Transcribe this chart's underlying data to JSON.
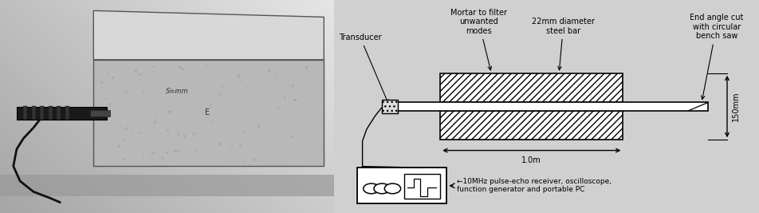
{
  "labels": {
    "transducer": "Transducer",
    "mortar": "Mortar to filter\nunwanted\nmodes",
    "steel_bar": "22mm diameter\nsteel bar",
    "end_angle": "End angle cut\nwith circular\nbench saw",
    "dimension_1m": "1.0m",
    "dimension_150mm": "150mm",
    "device_label": "←10MHz pulse-echo receiver, oscilloscope,\nfunction generator and portable PC"
  },
  "hatch_pattern": "////",
  "line_color": "#000000",
  "text_color": "#000000",
  "photo_bg": "#b0b0b0",
  "block_face_color": "#c8c8c8",
  "block_top_color": "#e0e0e0",
  "block_right_color": "#a0a0a0",
  "transducer_color": "#222222",
  "diagram_bg": "#ffffff"
}
